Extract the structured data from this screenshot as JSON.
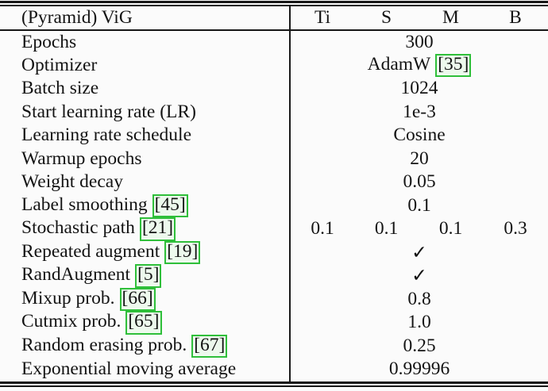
{
  "colors": {
    "citation_border": "#2fbf3a",
    "citation_fill": "#edf9ed",
    "rule": "#161616",
    "text": "#131313",
    "background": "#fbfbfb"
  },
  "table": {
    "header": {
      "label": "(Pyramid) ViG",
      "columns": [
        "Ti",
        "S",
        "M",
        "B"
      ]
    },
    "rows": [
      {
        "label": "Epochs",
        "value": "300"
      },
      {
        "label": "Optimizer",
        "value": "AdamW",
        "value_cite": "[35]"
      },
      {
        "label": "Batch size",
        "value": "1024"
      },
      {
        "label": "Start learning rate (LR)",
        "value": "1e-3"
      },
      {
        "label": "Learning rate schedule",
        "value": "Cosine"
      },
      {
        "label": "Warmup epochs",
        "value": "20"
      },
      {
        "label": "Weight decay",
        "value": "0.05"
      },
      {
        "label": "Label smoothing",
        "label_cite": "[45]",
        "value": "0.1"
      },
      {
        "label": "Stochastic path",
        "label_cite": "[21]",
        "values": [
          "0.1",
          "0.1",
          "0.1",
          "0.3"
        ]
      },
      {
        "label": "Repeated augment",
        "label_cite": "[19]",
        "value": "✓"
      },
      {
        "label": "RandAugment",
        "label_cite": "[5]",
        "value": "✓"
      },
      {
        "label": "Mixup prob.",
        "label_cite": "[66]",
        "value": "0.8"
      },
      {
        "label": "Cutmix prob.",
        "label_cite": "[65]",
        "value": "1.0"
      },
      {
        "label": "Random erasing prob.",
        "label_cite": "[67]",
        "value": "0.25"
      },
      {
        "label": "Exponential moving average",
        "value": "0.99996"
      }
    ]
  }
}
